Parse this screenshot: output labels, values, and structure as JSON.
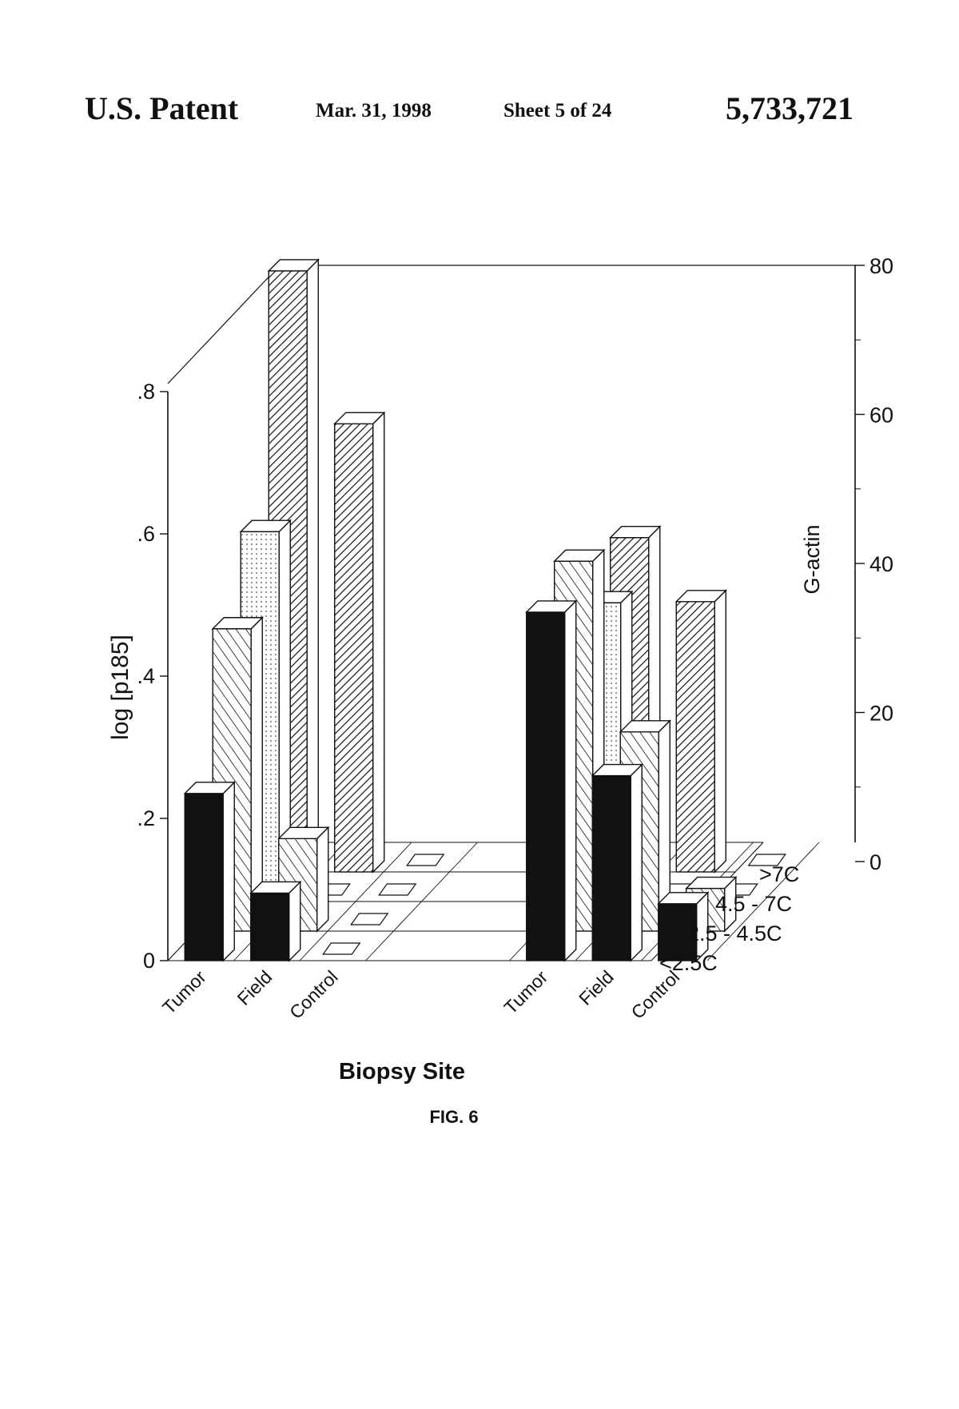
{
  "header": {
    "title": "U.S. Patent",
    "date": "Mar. 31, 1998",
    "sheet": "Sheet 5 of 24",
    "patent_number": "5,733,721"
  },
  "figure": {
    "caption": "FIG. 6"
  },
  "chart_data": {
    "type": "bar",
    "projection": "3d",
    "xlabel": "Biopsy Site",
    "ylabel": "log [p185]",
    "y2label": "G-actin",
    "ylim": [
      0,
      0.8
    ],
    "y_ticks": [
      ".8",
      ".6",
      ".4",
      ".2",
      "0"
    ],
    "y2lim": [
      0,
      80
    ],
    "y2_ticks": [
      "80",
      "60",
      "40",
      "20",
      "0"
    ],
    "groups": [
      {
        "categories": [
          "Tumor",
          "Field",
          "Control"
        ]
      },
      {
        "categories": [
          "Tumor",
          "Field",
          "Control"
        ]
      }
    ],
    "depth_labels": [
      "<2.5C",
      "2.5 - 4.5C",
      "4.5 - 7C",
      ">7C"
    ],
    "series": [
      {
        "name": "<2.5C",
        "pattern": "solid-black",
        "values": [
          0.235,
          0.095,
          0.0,
          0.49,
          0.26,
          0.08
        ]
      },
      {
        "name": "2.5 - 4.5C",
        "pattern": "diagonal-hatch",
        "values": [
          0.425,
          0.13,
          0.0,
          0.52,
          0.28,
          0.06
        ]
      },
      {
        "name": "4.5 - 7C",
        "pattern": "dotted",
        "values": [
          0.52,
          0.0,
          0.0,
          0.42,
          0.0,
          0.0
        ]
      },
      {
        "name": ">7C",
        "pattern": "dense-hatch",
        "values": [
          0.845,
          0.63,
          0.0,
          0.47,
          0.38,
          0.0
        ]
      }
    ]
  }
}
